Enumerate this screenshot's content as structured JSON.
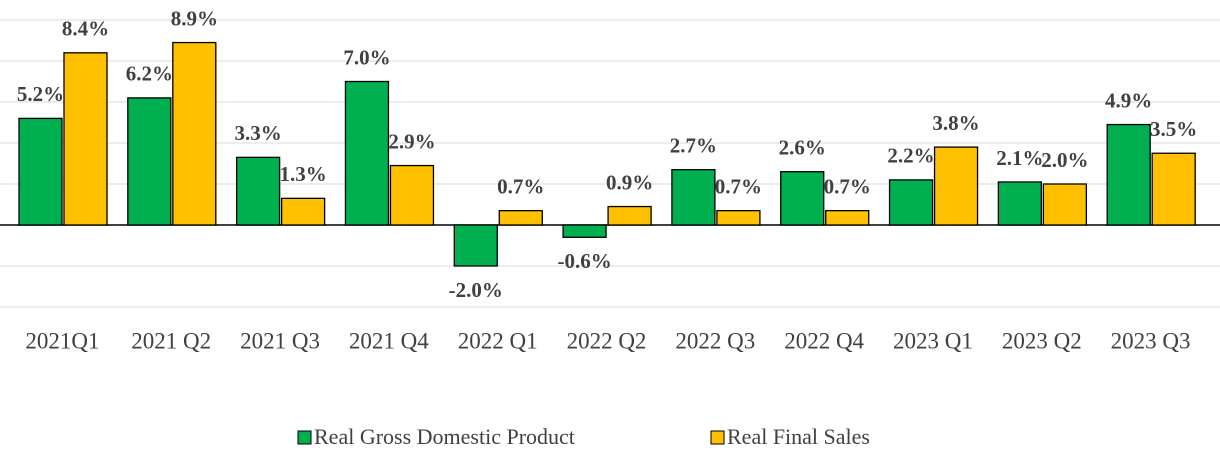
{
  "chart_data": {
    "type": "bar",
    "categories": [
      "2021Q1",
      "2021 Q2",
      "2021 Q3",
      "2021 Q4",
      "2022 Q1",
      "2022 Q2",
      "2022 Q3",
      "2022 Q4",
      "2023 Q1",
      "2023 Q2",
      "2023 Q3"
    ],
    "series": [
      {
        "name": "Real Gross Domestic Product",
        "color": "#00b050",
        "values": [
          5.2,
          6.2,
          3.3,
          7.0,
          -2.0,
          -0.6,
          2.7,
          2.6,
          2.2,
          2.1,
          4.9
        ],
        "value_labels": [
          "5.2%",
          "6.2%",
          "3.3%",
          "7.0%",
          "-2.0%",
          "-0.6%",
          "2.7%",
          "2.6%",
          "2.2%",
          "2.1%",
          "4.9%"
        ]
      },
      {
        "name": "Real Final Sales",
        "color": "#ffc000",
        "values": [
          8.4,
          8.9,
          1.3,
          2.9,
          0.7,
          0.9,
          0.7,
          0.7,
          3.8,
          2.0,
          3.5
        ],
        "value_labels": [
          "8.4%",
          "8.9%",
          "1.3%",
          "2.9%",
          "0.7%",
          "0.9%",
          "0.7%",
          "0.7%",
          "3.8%",
          "2.0%",
          "3.5%"
        ]
      }
    ],
    "ylim": [
      -4,
      10
    ],
    "yticks": [
      -4,
      -2,
      0,
      2,
      4,
      6,
      8,
      10
    ],
    "grid": true,
    "legend": "bottom"
  }
}
